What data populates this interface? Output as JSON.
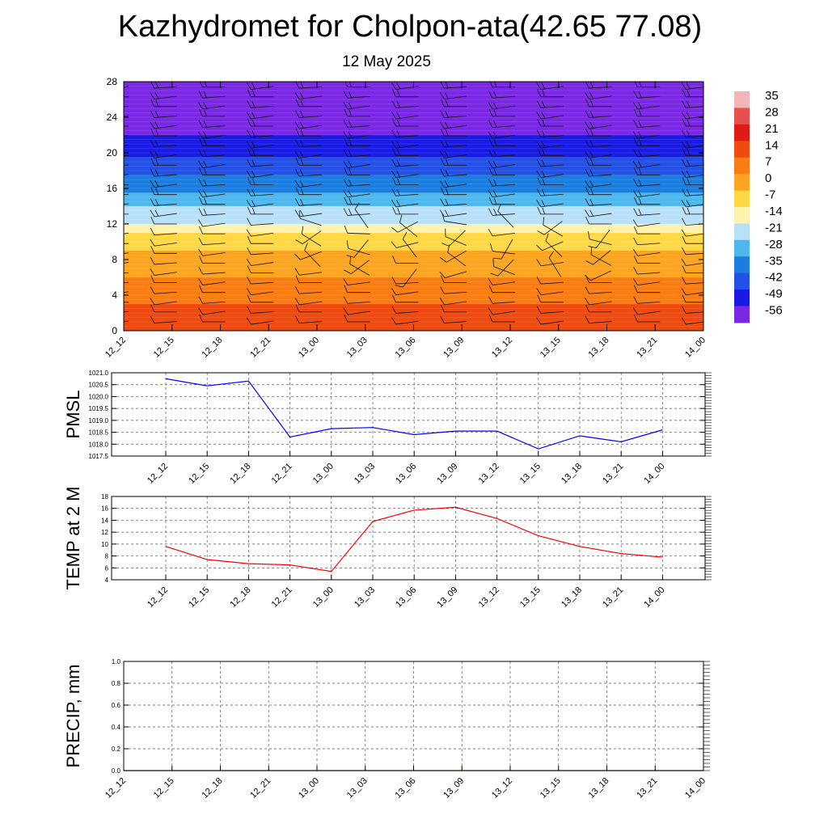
{
  "title": "Kazhydromet for Cholpon-ata(42.65 77.08)",
  "subtitle": "12 May 2025",
  "time_labels": [
    "12_12",
    "12_15",
    "12_18",
    "12_21",
    "13_00",
    "13_03",
    "13_06",
    "13_09",
    "13_12",
    "13_15",
    "13_18",
    "13_21",
    "14_00"
  ],
  "colorbar": {
    "labels": [
      "35",
      "28",
      "21",
      "14",
      "7",
      "0",
      "-7",
      "-14",
      "-21",
      "-28",
      "-35",
      "-42",
      "-49",
      "-56"
    ],
    "colors": [
      "#f3b5b5",
      "#e85050",
      "#dd1c14",
      "#ef4a10",
      "#fb7c10",
      "#fda520",
      "#fed845",
      "#fdf3b0",
      "#b8e0f8",
      "#4cb8ee",
      "#1a7de0",
      "#2350e6",
      "#1a1ae6",
      "#7a28e6"
    ]
  },
  "chart_data": [
    {
      "type": "heatmap",
      "title": "",
      "xlabel": "",
      "ylabel": "",
      "x": [
        "12_12",
        "12_15",
        "12_18",
        "12_21",
        "13_00",
        "13_03",
        "13_06",
        "13_09",
        "13_12",
        "13_15",
        "13_18",
        "13_21",
        "14_00"
      ],
      "ylim": [
        0,
        28
      ],
      "yticks": [
        0,
        4,
        8,
        12,
        16,
        20,
        24,
        28
      ],
      "color_scale": [
        -56,
        35
      ],
      "color_bands": [
        {
          "y_from": 0,
          "y_to": 3,
          "value": 14
        },
        {
          "y_from": 3,
          "y_to": 6,
          "value": 7
        },
        {
          "y_from": 6,
          "y_to": 9,
          "value": 0
        },
        {
          "y_from": 9,
          "y_to": 11,
          "value": -7
        },
        {
          "y_from": 11,
          "y_to": 12,
          "value": -14
        },
        {
          "y_from": 12,
          "y_to": 14,
          "value": -21
        },
        {
          "y_from": 14,
          "y_to": 15.5,
          "value": -28
        },
        {
          "y_from": 15.5,
          "y_to": 17.5,
          "value": -35
        },
        {
          "y_from": 17.5,
          "y_to": 19.5,
          "value": -42
        },
        {
          "y_from": 19.5,
          "y_to": 22,
          "value": -49
        },
        {
          "y_from": 22,
          "y_to": 24,
          "value": -56
        },
        {
          "y_from": 24,
          "y_to": 28,
          "value": -60
        }
      ],
      "wind_barbs": "shown at each time step and level"
    },
    {
      "type": "line",
      "ylabel": "PMSL",
      "x": [
        "12_12",
        "12_15",
        "12_18",
        "12_21",
        "13_00",
        "13_03",
        "13_06",
        "13_09",
        "13_12",
        "13_15",
        "13_18",
        "13_21",
        "14_00"
      ],
      "ylim": [
        1017.5,
        1021.0
      ],
      "yticks": [
        "1017.5",
        "1018.0",
        "1018.5",
        "1019.0",
        "1019.5",
        "1020.0",
        "1020.5",
        "1021.0"
      ],
      "series": [
        {
          "values": [
            1020.75,
            1020.45,
            1020.65,
            1018.3,
            1018.65,
            1018.7,
            1018.4,
            1018.55,
            1018.55,
            1017.8,
            1018.35,
            1018.1,
            1018.6
          ],
          "color": "#0000ff"
        }
      ],
      "grid": true
    },
    {
      "type": "line",
      "ylabel": "TEMP at 2 M",
      "x": [
        "12_12",
        "12_15",
        "12_18",
        "12_21",
        "13_00",
        "13_03",
        "13_06",
        "13_09",
        "13_12",
        "13_15",
        "13_18",
        "13_21",
        "14_00"
      ],
      "ylim": [
        4,
        18
      ],
      "yticks": [
        "4",
        "6",
        "8",
        "10",
        "12",
        "14",
        "16",
        "18"
      ],
      "series": [
        {
          "values": [
            9.6,
            7.4,
            6.7,
            6.5,
            5.4,
            13.8,
            15.7,
            16.2,
            14.3,
            11.4,
            9.6,
            8.4,
            7.8
          ],
          "color": "#ff0000"
        }
      ],
      "grid": true
    },
    {
      "type": "line",
      "ylabel": "PRECIP, mm",
      "x": [
        "12_12",
        "12_15",
        "12_18",
        "12_21",
        "13_00",
        "13_03",
        "13_06",
        "13_09",
        "13_12",
        "13_15",
        "13_18",
        "13_21",
        "14_00"
      ],
      "ylim": [
        0,
        1.0
      ],
      "yticks": [
        "0.0",
        "0.2",
        "0.4",
        "0.6",
        "0.8",
        "1.0"
      ],
      "series": [
        {
          "values": [
            0,
            0,
            0,
            0,
            0,
            0,
            0,
            0,
            0,
            0,
            0,
            0,
            0
          ],
          "color": "#006400"
        }
      ],
      "grid": true
    }
  ]
}
